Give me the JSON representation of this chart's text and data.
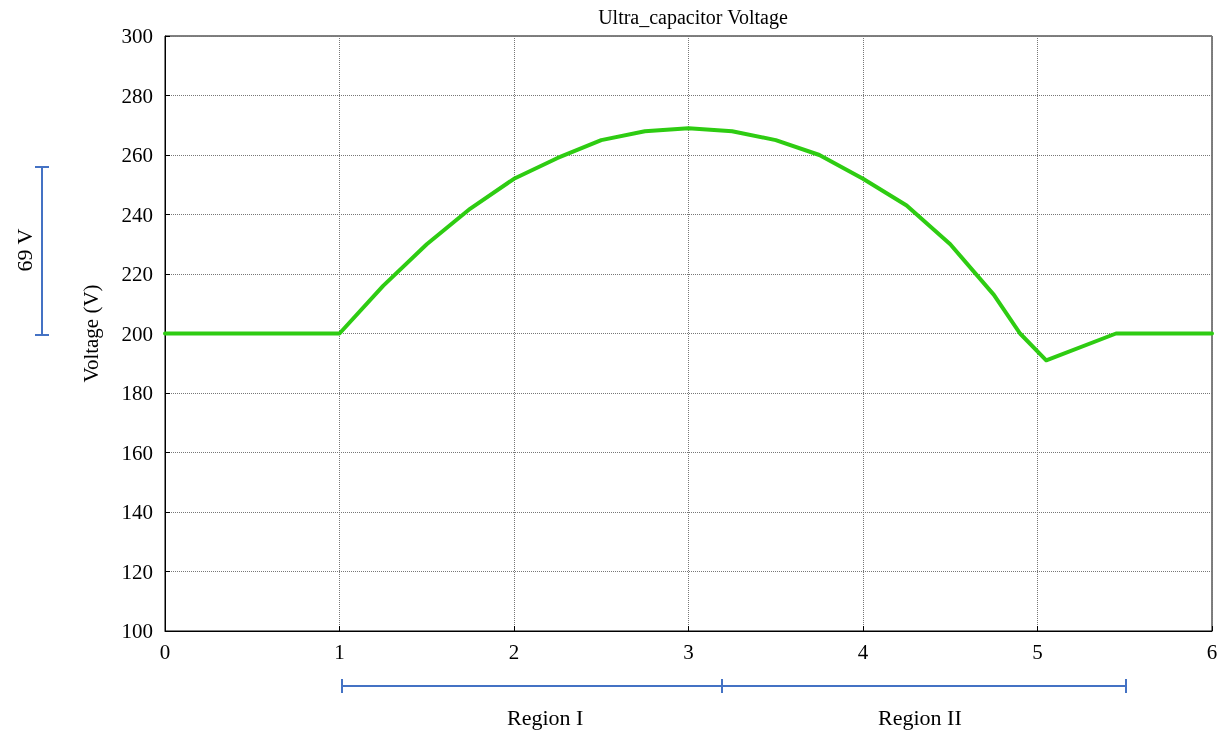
{
  "chart_data": {
    "type": "line",
    "title": "Ultra_capacitor Voltage",
    "ylabel": "Voltage (V)",
    "x": [
      0,
      1,
      1.25,
      1.5,
      1.75,
      2,
      2.25,
      2.5,
      2.75,
      3,
      3.25,
      3.5,
      3.75,
      4,
      4.25,
      4.5,
      4.75,
      4.9,
      5.05,
      5.45,
      6
    ],
    "series": [
      {
        "color": "#2ecc12",
        "values": [
          200,
          200,
          216,
          230,
          242,
          252,
          259,
          265,
          268,
          269,
          268,
          265,
          260,
          252,
          243,
          230,
          213,
          200,
          191,
          200,
          200
        ]
      }
    ],
    "xlim": [
      0,
      6
    ],
    "xticks": [
      0,
      1,
      2,
      3,
      4,
      5,
      6
    ],
    "ylim": [
      100,
      300
    ],
    "yticks": [
      100,
      120,
      140,
      160,
      180,
      200,
      220,
      240,
      260,
      280,
      300
    ],
    "grid": true,
    "marker": "none",
    "line_style": "solid",
    "annotations": [
      "69 V",
      "Region I",
      "Region II"
    ]
  }
}
